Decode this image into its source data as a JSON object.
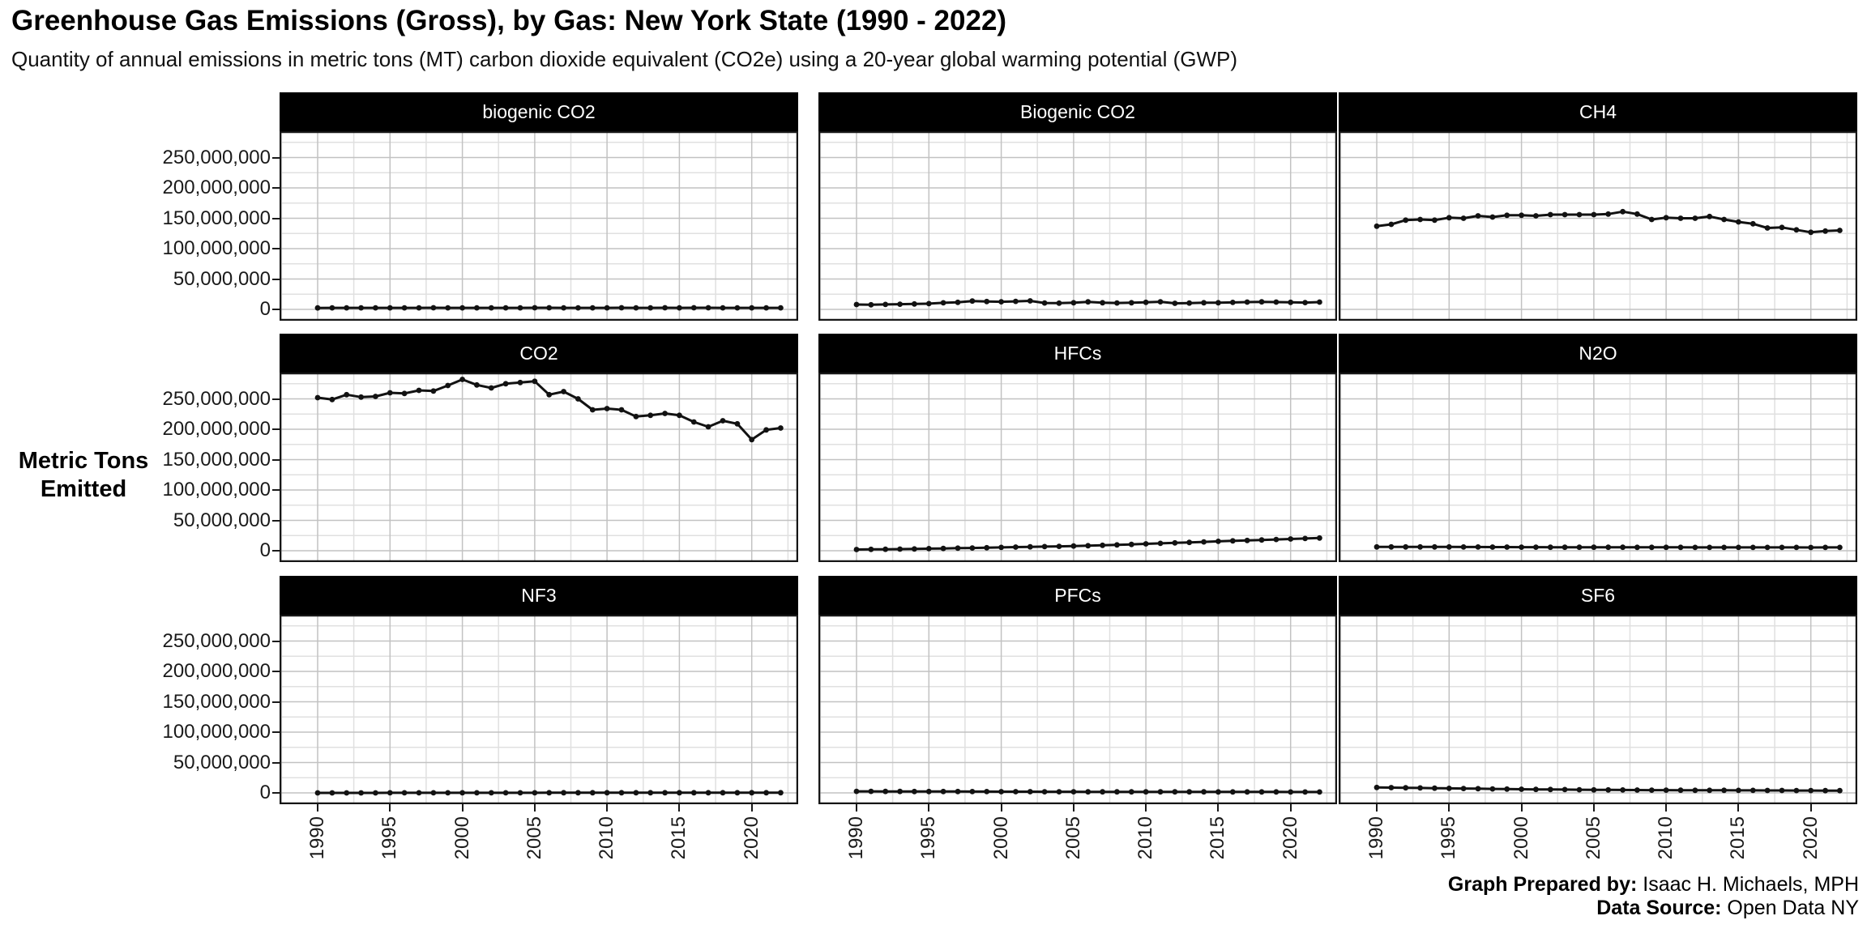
{
  "caption": {
    "prepared_by_label": "Graph Prepared by:",
    "prepared_by_value": " Isaac H. Michaels, MPH",
    "source_label": "Data Source:",
    "source_value": " Open Data NY"
  },
  "chart_data": {
    "type": "line",
    "title": "Greenhouse Gas Emissions (Gross), by Gas: New York State (1990 - 2022)",
    "subtitle": "Quantity of annual emissions in metric tons (MT) carbon dioxide equivalent (CO2e) using a 20-year global warming potential (GWP)",
    "ylabel": "Metric Tons\nEmitted",
    "xlabel": "",
    "facet_layout": "3x3 grid, black strip headers with white text",
    "grid": "major and minor gray gridlines on white panels, thin black panel border",
    "legend": "none",
    "point_marker": "filled black circles on black line",
    "ylim": [
      0,
      290000000
    ],
    "xlim": [
      1988,
      2024
    ],
    "x_ticks": [
      1990,
      1995,
      2000,
      2005,
      2010,
      2015,
      2020
    ],
    "y_tick_values": [
      250000000,
      200000000,
      150000000,
      100000000,
      50000000,
      0
    ],
    "y_tick_labels": [
      "250,000,000",
      "200,000,000",
      "150,000,000",
      "100,000,000",
      "50,000,000",
      "0"
    ],
    "years": [
      1990,
      1991,
      1992,
      1993,
      1994,
      1995,
      1996,
      1997,
      1998,
      1999,
      2000,
      2001,
      2002,
      2003,
      2004,
      2005,
      2006,
      2007,
      2008,
      2009,
      2010,
      2011,
      2012,
      2013,
      2014,
      2015,
      2016,
      2017,
      2018,
      2019,
      2020,
      2021,
      2022
    ],
    "facets": [
      {
        "label": "biogenic CO2",
        "values": [
          2400000,
          2500000,
          2500000,
          2600000,
          2500000,
          2500000,
          2600000,
          2600000,
          2700000,
          2600000,
          2600000,
          2500000,
          2500000,
          2600000,
          2600000,
          2700000,
          2700000,
          2600000,
          2600000,
          2500000,
          2600000,
          2700000,
          2600000,
          2600000,
          2700000,
          2600000,
          2700000,
          2700000,
          2600000,
          2600000,
          2500000,
          2600000,
          2600000
        ]
      },
      {
        "label": "Biogenic CO2",
        "values": [
          8000000,
          7600000,
          8100000,
          8600000,
          9000000,
          9400000,
          10800000,
          11600000,
          13800000,
          13000000,
          12600000,
          13200000,
          14000000,
          10600000,
          10200000,
          11000000,
          12400000,
          11000000,
          10600000,
          11000000,
          11600000,
          12600000,
          10000000,
          10400000,
          11000000,
          11000000,
          11400000,
          12000000,
          12400000,
          12000000,
          11600000,
          11200000,
          12000000
        ]
      },
      {
        "label": "CH4",
        "values": [
          137000000,
          140000000,
          147000000,
          148000000,
          147000000,
          151000000,
          150000000,
          154000000,
          152000000,
          155000000,
          155000000,
          154000000,
          156000000,
          156000000,
          156000000,
          156000000,
          157000000,
          161000000,
          157000000,
          148000000,
          151000000,
          150000000,
          150000000,
          153000000,
          148000000,
          144000000,
          141000000,
          134000000,
          135000000,
          131000000,
          127000000,
          129000000,
          130000000
        ]
      },
      {
        "label": "CO2",
        "values": [
          252000000,
          249000000,
          257000000,
          253000000,
          254000000,
          260000000,
          259000000,
          264000000,
          263000000,
          272000000,
          282000000,
          273000000,
          268000000,
          275000000,
          277000000,
          279000000,
          257000000,
          262000000,
          250000000,
          232000000,
          234000000,
          232000000,
          221000000,
          223000000,
          226000000,
          223000000,
          212000000,
          204000000,
          214000000,
          209000000,
          183000000,
          199000000,
          202000000
        ]
      },
      {
        "label": "HFCs",
        "values": [
          2000000,
          2200000,
          2400000,
          2700000,
          3000000,
          3400000,
          3800000,
          4200000,
          4600000,
          5000000,
          5500000,
          6000000,
          6400000,
          6800000,
          7200000,
          7700000,
          8200000,
          8900000,
          9600000,
          10400000,
          11300000,
          12100000,
          13000000,
          13800000,
          14600000,
          15400000,
          16200000,
          17000000,
          17800000,
          18600000,
          19300000,
          20100000,
          21000000
        ]
      },
      {
        "label": "N2O",
        "values": [
          6200000,
          6200000,
          6300000,
          6300000,
          6200000,
          6200000,
          6100000,
          6100000,
          6000000,
          6000000,
          5900000,
          5900000,
          5800000,
          5800000,
          5800000,
          5700000,
          5700000,
          5700000,
          5600000,
          5600000,
          5600000,
          5600000,
          5500000,
          5500000,
          5500000,
          5500000,
          5400000,
          5400000,
          5400000,
          5400000,
          5300000,
          5400000,
          5400000
        ]
      },
      {
        "label": "NF3",
        "values": [
          0,
          0,
          0,
          0,
          0,
          100000,
          100000,
          100000,
          100000,
          100000,
          100000,
          100000,
          100000,
          100000,
          100000,
          100000,
          200000,
          200000,
          200000,
          200000,
          200000,
          200000,
          200000,
          200000,
          200000,
          200000,
          200000,
          200000,
          200000,
          200000,
          200000,
          200000,
          200000
        ]
      },
      {
        "label": "PFCs",
        "values": [
          2600000,
          2500000,
          2400000,
          2400000,
          2300000,
          2300000,
          2200000,
          2200000,
          2100000,
          2100000,
          2000000,
          2000000,
          2000000,
          1900000,
          1900000,
          1900000,
          1800000,
          1800000,
          1800000,
          1800000,
          1700000,
          1700000,
          1700000,
          1700000,
          1700000,
          1600000,
          1600000,
          1600000,
          1600000,
          1600000,
          1500000,
          1500000,
          1500000
        ]
      },
      {
        "label": "SF6",
        "values": [
          9000000,
          8700000,
          8400000,
          8100000,
          7800000,
          7500000,
          7200000,
          6900000,
          6600000,
          6300000,
          6000000,
          5800000,
          5600000,
          5400000,
          5200000,
          5000000,
          4900000,
          4800000,
          4700000,
          4600000,
          4500000,
          4400000,
          4300000,
          4300000,
          4200000,
          4100000,
          4100000,
          4000000,
          4000000,
          3900000,
          3900000,
          3800000,
          3800000
        ]
      }
    ]
  }
}
